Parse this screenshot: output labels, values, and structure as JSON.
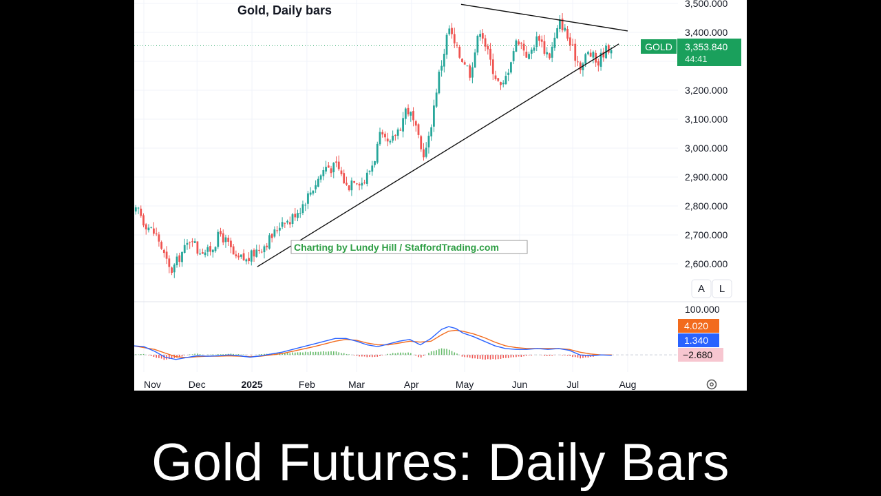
{
  "caption": "Gold Futures: Daily Bars",
  "chart_data": {
    "type": "candlestick",
    "title": "Gold, Daily bars",
    "watermark": "Charting by Lundy Hill / StaffordTrading.com",
    "symbol": "GOLD",
    "last_price": "3,353.840",
    "countdown": "44:41",
    "ylim": [
      2550,
      3500
    ],
    "y_ticks": [
      "2,600.000",
      "2,700.000",
      "2,800.000",
      "2,900.000",
      "3,000.000",
      "3,100.000",
      "3,200.000",
      "3,300.000",
      "3,400.000",
      "3,500.000"
    ],
    "y_tick_values": [
      2600,
      2700,
      2800,
      2900,
      3000,
      3100,
      3200,
      3300,
      3400,
      3500
    ],
    "x_labels": [
      {
        "text": "Nov",
        "day": 0,
        "bold": false
      },
      {
        "text": "Dec",
        "day": 30,
        "bold": false
      },
      {
        "text": "2025",
        "day": 61,
        "bold": true
      },
      {
        "text": "Feb",
        "day": 92,
        "bold": false
      },
      {
        "text": "Mar",
        "day": 120,
        "bold": false
      },
      {
        "text": "Apr",
        "day": 151,
        "bold": false
      },
      {
        "text": "May",
        "day": 181,
        "bold": false
      },
      {
        "text": "Jun",
        "day": 212,
        "bold": false
      },
      {
        "text": "Jul",
        "day": 242,
        "bold": false
      },
      {
        "text": "Aug",
        "day": 273,
        "bold": false
      }
    ],
    "close_path": [
      [
        -6,
        2770
      ],
      [
        -3,
        2790
      ],
      [
        0,
        2745
      ],
      [
        4,
        2720
      ],
      [
        8,
        2690
      ],
      [
        12,
        2620
      ],
      [
        15,
        2570
      ],
      [
        18,
        2600
      ],
      [
        21,
        2635
      ],
      [
        24,
        2660
      ],
      [
        27,
        2700
      ],
      [
        30,
        2645
      ],
      [
        33,
        2650
      ],
      [
        36,
        2640
      ],
      [
        39,
        2660
      ],
      [
        43,
        2705
      ],
      [
        46,
        2680
      ],
      [
        49,
        2650
      ],
      [
        52,
        2610
      ],
      [
        55,
        2620
      ],
      [
        58,
        2610
      ],
      [
        61,
        2630
      ],
      [
        64,
        2650
      ],
      [
        67,
        2660
      ],
      [
        70,
        2680
      ],
      [
        73,
        2700
      ],
      [
        76,
        2730
      ],
      [
        79,
        2760
      ],
      [
        82,
        2740
      ],
      [
        85,
        2775
      ],
      [
        88,
        2790
      ],
      [
        91,
        2820
      ],
      [
        94,
        2850
      ],
      [
        97,
        2880
      ],
      [
        100,
        2910
      ],
      [
        103,
        2940
      ],
      [
        106,
        2930
      ],
      [
        109,
        2940
      ],
      [
        112,
        2900
      ],
      [
        115,
        2860
      ],
      [
        118,
        2900
      ],
      [
        121,
        2890
      ],
      [
        124,
        2880
      ],
      [
        127,
        2920
      ],
      [
        130,
        2960
      ],
      [
        133,
        3040
      ],
      [
        136,
        3020
      ],
      [
        139,
        3010
      ],
      [
        142,
        3050
      ],
      [
        145,
        3080
      ],
      [
        148,
        3140
      ],
      [
        151,
        3110
      ],
      [
        154,
        3050
      ],
      [
        157,
        2980
      ],
      [
        160,
        3000
      ],
      [
        163,
        3120
      ],
      [
        166,
        3240
      ],
      [
        169,
        3320
      ],
      [
        172,
        3420
      ],
      [
        175,
        3360
      ],
      [
        178,
        3320
      ],
      [
        181,
        3300
      ],
      [
        184,
        3260
      ],
      [
        187,
        3340
      ],
      [
        190,
        3420
      ],
      [
        193,
        3350
      ],
      [
        196,
        3290
      ],
      [
        199,
        3240
      ],
      [
        202,
        3200
      ],
      [
        205,
        3260
      ],
      [
        208,
        3330
      ],
      [
        211,
        3380
      ],
      [
        214,
        3350
      ],
      [
        217,
        3310
      ],
      [
        220,
        3360
      ],
      [
        223,
        3390
      ],
      [
        226,
        3340
      ],
      [
        229,
        3320
      ],
      [
        232,
        3380
      ],
      [
        235,
        3440
      ],
      [
        238,
        3400
      ],
      [
        241,
        3350
      ],
      [
        244,
        3310
      ],
      [
        247,
        3280
      ],
      [
        250,
        3330
      ],
      [
        253,
        3320
      ],
      [
        256,
        3290
      ],
      [
        259,
        3330
      ],
      [
        262,
        3346
      ],
      [
        264,
        3353
      ]
    ],
    "trendlines": [
      {
        "name": "lower-support",
        "from": [
          64,
          2590
        ],
        "to": [
          268,
          3360
        ]
      },
      {
        "name": "upper-resistance",
        "from": [
          179,
          3497
        ],
        "to": [
          273,
          3405
        ]
      }
    ],
    "indicator": {
      "ylim": [
        -30,
        100
      ],
      "top_label": "100.000",
      "values": [
        {
          "text": "4.020",
          "color": "#F26B1D"
        },
        {
          "text": "1.340",
          "color": "#2962FF"
        },
        {
          "text": "−2.680",
          "color": "#F7C6D0",
          "text_color": "#111111"
        }
      ],
      "fast_line": [
        [
          -6,
          20
        ],
        [
          0,
          18
        ],
        [
          6,
          8
        ],
        [
          12,
          -5
        ],
        [
          18,
          -10
        ],
        [
          24,
          -6
        ],
        [
          30,
          -2
        ],
        [
          36,
          -3
        ],
        [
          42,
          -2
        ],
        [
          48,
          0
        ],
        [
          54,
          -2
        ],
        [
          60,
          -5
        ],
        [
          66,
          -2
        ],
        [
          72,
          2
        ],
        [
          78,
          6
        ],
        [
          84,
          12
        ],
        [
          90,
          18
        ],
        [
          96,
          24
        ],
        [
          102,
          30
        ],
        [
          108,
          36
        ],
        [
          114,
          36
        ],
        [
          120,
          30
        ],
        [
          126,
          22
        ],
        [
          132,
          18
        ],
        [
          138,
          24
        ],
        [
          144,
          30
        ],
        [
          150,
          34
        ],
        [
          156,
          22
        ],
        [
          162,
          36
        ],
        [
          168,
          56
        ],
        [
          172,
          62
        ],
        [
          176,
          58
        ],
        [
          180,
          48
        ],
        [
          186,
          40
        ],
        [
          192,
          30
        ],
        [
          198,
          20
        ],
        [
          204,
          14
        ],
        [
          210,
          12
        ],
        [
          216,
          12
        ],
        [
          222,
          14
        ],
        [
          228,
          12
        ],
        [
          234,
          14
        ],
        [
          240,
          10
        ],
        [
          246,
          0
        ],
        [
          252,
          -2
        ],
        [
          258,
          0
        ],
        [
          264,
          -1
        ]
      ],
      "slow_line": [
        [
          -6,
          20
        ],
        [
          0,
          16
        ],
        [
          6,
          12
        ],
        [
          12,
          4
        ],
        [
          18,
          -4
        ],
        [
          24,
          -6
        ],
        [
          30,
          -4
        ],
        [
          36,
          -3
        ],
        [
          42,
          -3
        ],
        [
          48,
          -2
        ],
        [
          54,
          -3
        ],
        [
          60,
          -4
        ],
        [
          66,
          -3
        ],
        [
          72,
          0
        ],
        [
          78,
          3
        ],
        [
          84,
          8
        ],
        [
          90,
          13
        ],
        [
          96,
          18
        ],
        [
          102,
          24
        ],
        [
          108,
          30
        ],
        [
          114,
          34
        ],
        [
          120,
          32
        ],
        [
          126,
          26
        ],
        [
          132,
          22
        ],
        [
          138,
          22
        ],
        [
          144,
          26
        ],
        [
          150,
          30
        ],
        [
          156,
          28
        ],
        [
          162,
          30
        ],
        [
          168,
          44
        ],
        [
          172,
          52
        ],
        [
          176,
          54
        ],
        [
          180,
          52
        ],
        [
          186,
          46
        ],
        [
          192,
          38
        ],
        [
          198,
          28
        ],
        [
          204,
          20
        ],
        [
          210,
          16
        ],
        [
          216,
          14
        ],
        [
          222,
          14
        ],
        [
          228,
          14
        ],
        [
          234,
          14
        ],
        [
          240,
          12
        ],
        [
          246,
          6
        ],
        [
          252,
          2
        ],
        [
          258,
          0
        ],
        [
          264,
          0
        ]
      ]
    }
  }
}
